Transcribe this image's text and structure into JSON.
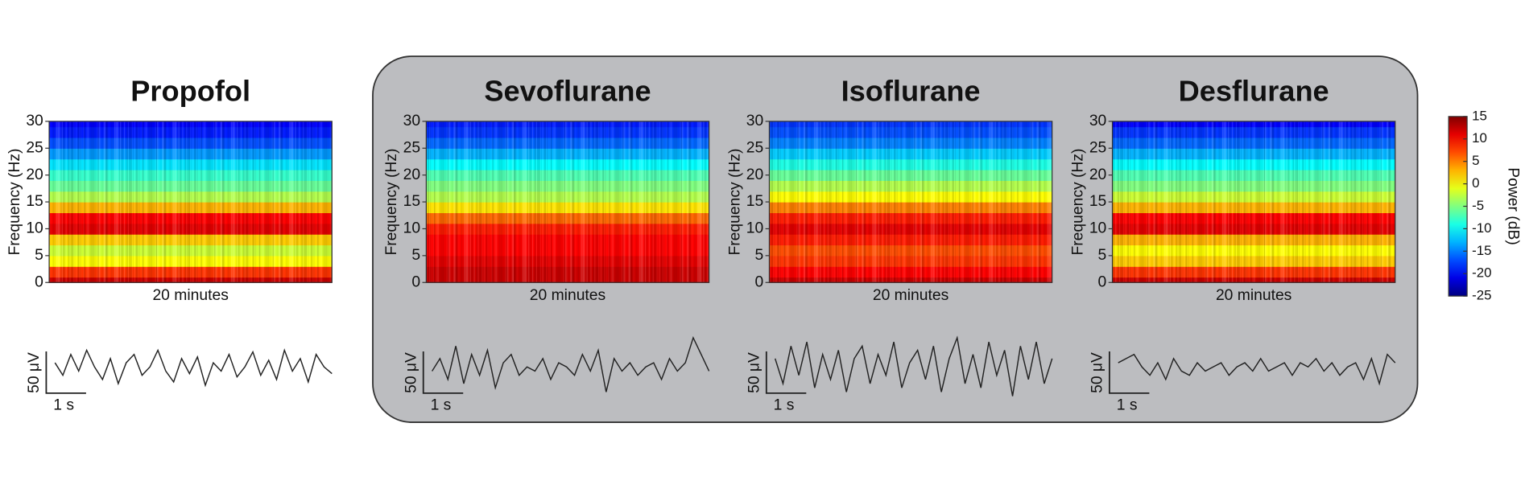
{
  "chart_data": [
    {
      "type": "heatmap",
      "title": "Propofol",
      "ylabel": "Frequency (Hz)",
      "xlabel": "20 minutes",
      "y": [
        0,
        2,
        4,
        6,
        8,
        10,
        12,
        14,
        16,
        18,
        20,
        22,
        24,
        26,
        28,
        30
      ],
      "values": [
        12,
        8,
        0,
        -2,
        2,
        11,
        10,
        3,
        -3,
        -6,
        -8,
        -11,
        -14,
        -17,
        -19,
        -20
      ],
      "ylim": [
        0,
        30
      ],
      "yticks": [
        0,
        5,
        10,
        15,
        20,
        25,
        30
      ],
      "trace": {
        "values": [
          5,
          -10,
          15,
          -5,
          20,
          0,
          -15,
          10,
          -20,
          5,
          15,
          -10,
          0,
          20,
          -5,
          -18,
          10,
          -8,
          12,
          -22,
          5,
          -5,
          15,
          -12,
          0,
          18,
          -10,
          8,
          -15,
          20,
          -5,
          10,
          -18,
          15,
          0,
          -8
        ],
        "color": "#222222",
        "time_bar": "1 s",
        "amp_bar": "50 μV"
      }
    },
    {
      "type": "heatmap",
      "title": "Sevoflurane",
      "ylabel": "Frequency (Hz)",
      "xlabel": "20 minutes",
      "y": [
        0,
        2,
        4,
        6,
        8,
        10,
        12,
        14,
        16,
        18,
        20,
        22,
        24,
        26,
        28,
        30
      ],
      "values": [
        12,
        12,
        11,
        10,
        10,
        9,
        6,
        1,
        -3,
        -5,
        -7,
        -10,
        -13,
        -16,
        -18,
        -19
      ],
      "ylim": [
        0,
        30
      ],
      "yticks": [
        0,
        5,
        10,
        15,
        20,
        25,
        30
      ],
      "trace": {
        "values": [
          -5,
          10,
          -15,
          25,
          -20,
          15,
          -10,
          20,
          -25,
          5,
          15,
          -10,
          0,
          -5,
          10,
          -15,
          5,
          0,
          -10,
          15,
          -5,
          20,
          -30,
          10,
          -5,
          5,
          -10,
          0,
          5,
          -15,
          10,
          -5,
          5,
          35,
          15,
          -5
        ],
        "color": "#222222",
        "time_bar": "1 s",
        "amp_bar": "50 μV"
      }
    },
    {
      "type": "heatmap",
      "title": "Isoflurane",
      "ylabel": "Frequency (Hz)",
      "xlabel": "20 minutes",
      "y": [
        0,
        2,
        4,
        6,
        8,
        10,
        12,
        14,
        16,
        18,
        20,
        22,
        24,
        26,
        28,
        30
      ],
      "values": [
        12,
        10,
        8,
        7,
        9,
        11,
        9,
        5,
        0,
        -3,
        -6,
        -9,
        -12,
        -15,
        -17,
        -18
      ],
      "ylim": [
        0,
        30
      ],
      "yticks": [
        0,
        5,
        10,
        15,
        20,
        25,
        30
      ],
      "trace": {
        "values": [
          10,
          -20,
          25,
          -10,
          30,
          -25,
          15,
          -15,
          20,
          -30,
          10,
          25,
          -20,
          15,
          -10,
          30,
          -25,
          5,
          20,
          -15,
          25,
          -30,
          10,
          35,
          -20,
          15,
          -25,
          30,
          -10,
          20,
          -35,
          25,
          -15,
          30,
          -20,
          10
        ],
        "color": "#222222",
        "time_bar": "1 s",
        "amp_bar": "50 μV"
      }
    },
    {
      "type": "heatmap",
      "title": "Desflurane",
      "ylabel": "Frequency (Hz)",
      "xlabel": "20 minutes",
      "y": [
        0,
        2,
        4,
        6,
        8,
        10,
        12,
        14,
        16,
        18,
        20,
        22,
        24,
        26,
        28,
        30
      ],
      "values": [
        12,
        8,
        2,
        0,
        3,
        11,
        10,
        3,
        -2,
        -5,
        -7,
        -10,
        -13,
        -16,
        -18,
        -20
      ],
      "ylim": [
        0,
        30
      ],
      "yticks": [
        0,
        5,
        10,
        15,
        20,
        25,
        30
      ],
      "trace": {
        "values": [
          5,
          10,
          15,
          0,
          -10,
          5,
          -15,
          10,
          -5,
          -10,
          5,
          -5,
          0,
          5,
          -10,
          0,
          5,
          -5,
          10,
          -5,
          0,
          5,
          -10,
          5,
          0,
          10,
          -5,
          5,
          -10,
          0,
          5,
          -15,
          10,
          -20,
          15,
          5
        ],
        "color": "#222222",
        "time_bar": "1 s",
        "amp_bar": "50 μV"
      }
    }
  ],
  "colorbar": {
    "label": "Power (dB)",
    "colormap": "jet",
    "lim": [
      -25,
      15
    ],
    "ticks": [
      15,
      10,
      5,
      0,
      -5,
      -10,
      -15,
      -20,
      -25
    ]
  }
}
